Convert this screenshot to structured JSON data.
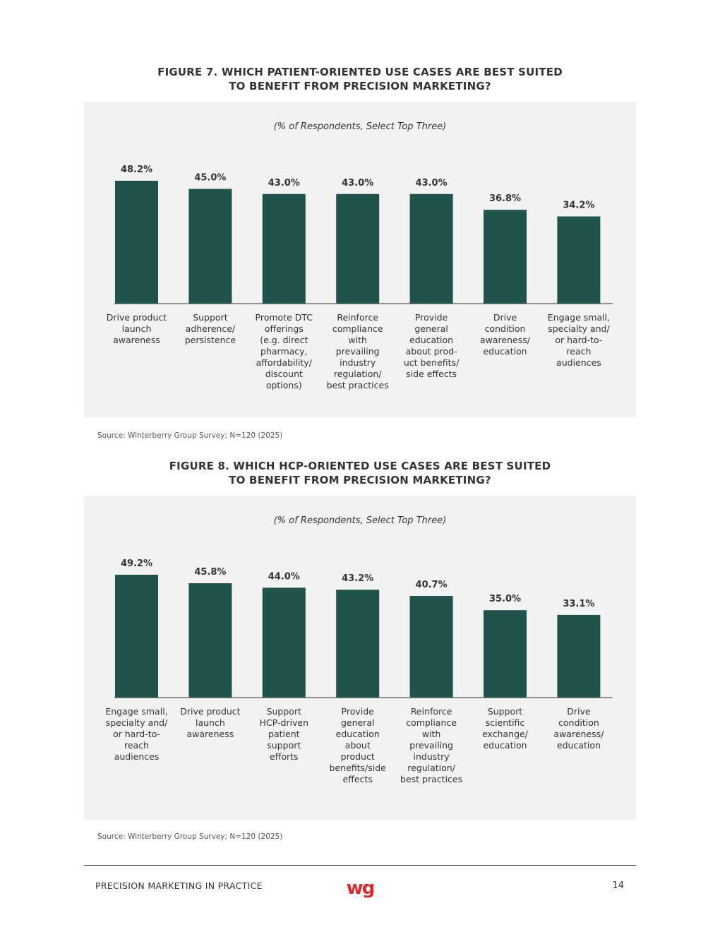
{
  "colors": {
    "bar": "#21534d",
    "panel": "#f3f2f2",
    "text": "#333333",
    "logo": "#e2262e"
  },
  "figure7": {
    "title_line1": "FIGURE 7. WHICH PATIENT-ORIENTED USE CASES ARE BEST SUITED",
    "title_line2": "TO BENEFIT FROM PRECISION MARKETING?",
    "subtitle": "(% of Respondents, Select Top Three)",
    "source": "Source: Winterberry Group Survey; N=120 (2025)"
  },
  "figure8": {
    "title_line1": "FIGURE 8. WHICH HCP-ORIENTED USE CASES ARE BEST SUITED",
    "title_line2": "TO BENEFIT FROM PRECISION MARKETING?",
    "subtitle": "(% of Respondents, Select Top Three)",
    "source": "Source: Winterberry Group Survey; N=120 (2025)"
  },
  "chart_data": [
    {
      "type": "bar",
      "title": "FIGURE 7. WHICH PATIENT-ORIENTED USE CASES ARE BEST SUITED TO BENEFIT FROM PRECISION MARKETING?",
      "subtitle": "(% of Respondents, Select Top Three)",
      "categories": [
        [
          "Drive product",
          "launch",
          "awareness"
        ],
        [
          "Support",
          "adherence/",
          "persistence"
        ],
        [
          "Promote DTC",
          "offerings",
          "(e.g. direct",
          "pharmacy,",
          "affordability/",
          "discount",
          "options)"
        ],
        [
          "Reinforce",
          "compliance",
          "with",
          "prevailing",
          "industry",
          "regulation/",
          "best practices"
        ],
        [
          "Provide",
          "general",
          "education",
          "about prod-",
          "uct benefits/",
          "side effects"
        ],
        [
          "Drive",
          "condition",
          "awareness/",
          "education"
        ],
        [
          "Engage small,",
          "specialty and/",
          "or hard-to-",
          "reach",
          "audiences"
        ]
      ],
      "values": [
        48.2,
        45.0,
        43.0,
        43.0,
        43.0,
        36.8,
        34.2
      ],
      "value_labels": [
        "48.2%",
        "45.0%",
        "43.0%",
        "43.0%",
        "43.0%",
        "36.8%",
        "34.2%"
      ],
      "xlabel": "",
      "ylabel": "",
      "ylim": [
        0,
        48.2
      ],
      "grid": false
    },
    {
      "type": "bar",
      "title": "FIGURE 8. WHICH HCP-ORIENTED USE CASES ARE BEST SUITED TO BENEFIT FROM PRECISION MARKETING?",
      "subtitle": "(% of Respondents, Select Top Three)",
      "categories": [
        [
          "Engage small,",
          "specialty and/",
          "or hard-to-",
          "reach",
          "audiences"
        ],
        [
          "Drive product",
          "launch",
          "awareness"
        ],
        [
          "Support",
          "HCP-driven",
          "patient",
          "support",
          "efforts"
        ],
        [
          "Provide",
          "general",
          "education",
          "about",
          "product",
          "benefits/side",
          "effects"
        ],
        [
          "Reinforce",
          "compliance",
          "with",
          "prevailing",
          "industry",
          "regulation/",
          "best practices"
        ],
        [
          "Support",
          "scientific",
          "exchange/",
          "education"
        ],
        [
          "Drive",
          "condition",
          "awareness/",
          "education"
        ]
      ],
      "values": [
        49.2,
        45.8,
        44.0,
        43.2,
        40.7,
        35.0,
        33.1
      ],
      "value_labels": [
        "49.2%",
        "45.8%",
        "44.0%",
        "43.2%",
        "40.7%",
        "35.0%",
        "33.1%"
      ],
      "xlabel": "",
      "ylabel": "",
      "ylim": [
        0,
        49.2
      ],
      "grid": false
    }
  ],
  "footer": {
    "left": "PRECISION MARKETING IN PRACTICE",
    "page_number": "14",
    "logo_text": "wg"
  }
}
